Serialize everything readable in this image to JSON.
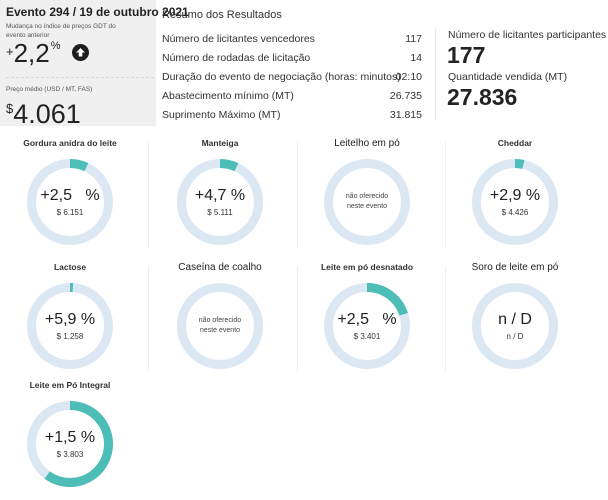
{
  "event": {
    "title": "Evento 294 / 19 de outubro 2021",
    "change_label": "Mudança no índice de preços GDT do evento anterior",
    "change_sign": "+",
    "change_value": "2,2",
    "change_unit": "%",
    "change_direction_icon": "arrow-up-circle-icon",
    "price_label": "Preço médio (USD / MT, FAS)",
    "price_symbol": "$",
    "price_value": "4.061"
  },
  "summary": {
    "title": "Resumo dos Resultados",
    "rows": [
      {
        "label": "Número de licitantes vencedores",
        "value": "117"
      },
      {
        "label": "Número de rodadas de licitação",
        "value": "14"
      },
      {
        "label": "Duração do evento de negociação (horas: minutos)",
        "value": "02:10"
      },
      {
        "label": "Abastecimento mínimo (MT)",
        "value": "26.735"
      },
      {
        "label": "Suprimento Máximo (MT)",
        "value": "31.815"
      }
    ]
  },
  "kpis": [
    {
      "label": "Número de licitantes participantes",
      "value": "177"
    },
    {
      "label": "Quantidade vendida (MT)",
      "value": "27.836"
    }
  ],
  "colors": {
    "ring_track": "#dce7f4",
    "ring_fill": "#4dbdb7"
  },
  "products": [
    {
      "name": "Gordura anidra do leite",
      "change": "+2,5   %",
      "price": "$ 6.151",
      "fill": 0.07,
      "offered": true
    },
    {
      "name": "Manteiga",
      "change": "+4,7 %",
      "price": "$ 5.111",
      "fill": 0.07,
      "offered": true
    },
    {
      "name": "Leitelho em pó",
      "note": "não oferecido neste evento",
      "fill": 0,
      "offered": false
    },
    {
      "name": "Cheddar",
      "change": "+2,9 %",
      "price": "$ 4.426",
      "fill": 0.035,
      "offered": true
    },
    {
      "name": "Lactose",
      "change": "+5,9 %",
      "price": "$ 1.258",
      "fill": 0.012,
      "offered": true
    },
    {
      "name": "Caseína de coalho",
      "note": "não oferecido neste evento",
      "fill": 0,
      "offered": false
    },
    {
      "name": "Leite em pó desnatado",
      "change": "+2,5   %",
      "price": "$ 3.401",
      "fill": 0.2,
      "offered": true
    },
    {
      "name": "Soro de leite em pó",
      "change": "n / D",
      "price": "n / D",
      "fill": 0,
      "offered": true
    },
    {
      "name": "Leite em Pó Integral",
      "change": "+1,5 %",
      "price": "$ 3.803",
      "fill": 0.6,
      "offered": true
    }
  ]
}
